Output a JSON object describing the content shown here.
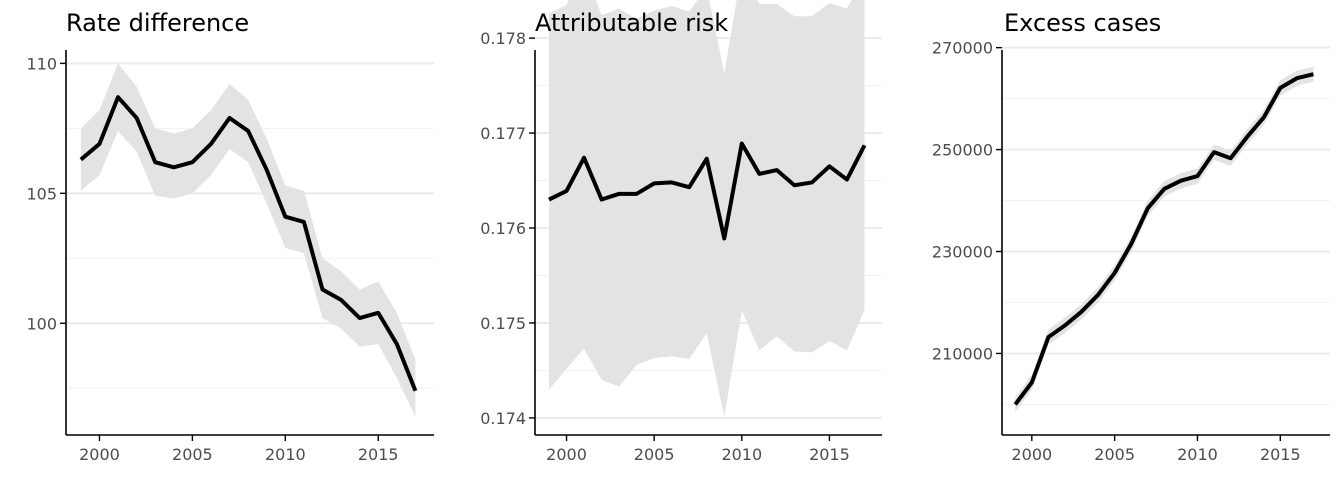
{
  "colors": {
    "line": "#000000",
    "ribbon": "#e3e3e3",
    "grid": "#ebebeb",
    "axis": "#000000",
    "tick_text": "#4d4d4d"
  },
  "chart_data": [
    {
      "type": "line",
      "title": "Rate difference",
      "xlabel": "",
      "ylabel": "",
      "xlim": [
        1998.2,
        2018
      ],
      "ylim": [
        95.7,
        110.9
      ],
      "grid": true,
      "x_ticks": [
        2000,
        2005,
        2010,
        2015
      ],
      "x_tick_labels": [
        "2000",
        "2005",
        "2010",
        "2015"
      ],
      "y_ticks": [
        100,
        105,
        110
      ],
      "y_tick_labels": [
        "100",
        "105",
        "110"
      ],
      "x": [
        1999,
        2000,
        2001,
        2002,
        2003,
        2004,
        2005,
        2006,
        2007,
        2008,
        2009,
        2010,
        2011,
        2012,
        2013,
        2014,
        2015,
        2016,
        2017
      ],
      "series": [
        {
          "values": [
            106.3,
            106.9,
            108.7,
            107.9,
            106.2,
            106.0,
            106.2,
            106.9,
            107.9,
            107.4,
            105.9,
            104.1,
            103.9,
            101.3,
            100.9,
            100.2,
            100.4,
            99.2,
            97.4
          ],
          "lower": [
            105.1,
            105.7,
            107.4,
            106.6,
            104.9,
            104.8,
            105.0,
            105.7,
            106.7,
            106.2,
            104.6,
            102.9,
            102.7,
            100.2,
            99.8,
            99.1,
            99.2,
            97.9,
            96.4
          ],
          "upper": [
            107.5,
            108.2,
            110.0,
            109.1,
            107.5,
            107.3,
            107.5,
            108.2,
            109.2,
            108.6,
            107.1,
            105.3,
            105.1,
            102.5,
            102.0,
            101.3,
            101.6,
            100.4,
            98.6
          ]
        }
      ]
    },
    {
      "type": "line",
      "title": "Attributable risk",
      "xlabel": "",
      "ylabel": "",
      "xlim": [
        1998.2,
        2018
      ],
      "ylim": [
        0.17382,
        0.17798
      ],
      "grid": true,
      "x_ticks": [
        2000,
        2005,
        2010,
        2015
      ],
      "x_tick_labels": [
        "2000",
        "2005",
        "2010",
        "2015"
      ],
      "y_ticks": [
        0.174,
        0.175,
        0.176,
        0.177,
        0.178
      ],
      "y_tick_labels": [
        "0.174",
        "0.175",
        "0.176",
        "0.177",
        "0.178"
      ],
      "x": [
        1999,
        2000,
        2001,
        2002,
        2003,
        2004,
        2005,
        2006,
        2007,
        2008,
        2009,
        2010,
        2011,
        2012,
        2013,
        2014,
        2015,
        2016,
        2017
      ],
      "series": [
        {
          "values": [
            0.1763,
            0.17639,
            0.17674,
            0.1763,
            0.17636,
            0.17636,
            0.17647,
            0.17648,
            0.17643,
            0.17673,
            0.17589,
            0.17689,
            0.17657,
            0.17661,
            0.17645,
            0.17648,
            0.17665,
            0.17651,
            0.17687
          ],
          "lower": [
            0.1743,
            0.17452,
            0.17473,
            0.1744,
            0.17433,
            0.17456,
            0.17463,
            0.17465,
            0.17462,
            0.17489,
            0.17401,
            0.17513,
            0.17471,
            0.17486,
            0.1747,
            0.17469,
            0.17481,
            0.17471,
            0.17514
          ],
          "upper": [
            0.17826,
            0.17835,
            0.17874,
            0.17824,
            0.17831,
            0.1782,
            0.17829,
            0.17834,
            0.17828,
            0.17853,
            0.17763,
            0.17872,
            0.17836,
            0.17836,
            0.17823,
            0.17823,
            0.17837,
            0.17831,
            0.17864
          ]
        }
      ]
    },
    {
      "type": "line",
      "title": "Excess cases",
      "xlabel": "",
      "ylabel": "",
      "xlim": [
        1998.2,
        2018
      ],
      "ylim": [
        194000,
        271500
      ],
      "grid": true,
      "x_ticks": [
        2000,
        2005,
        2010,
        2015
      ],
      "x_tick_labels": [
        "2000",
        "2005",
        "2010",
        "2015"
      ],
      "y_ticks": [
        210000,
        230000,
        250000,
        270000
      ],
      "y_tick_labels": [
        "210000",
        "230000",
        "250000",
        "270000"
      ],
      "x": [
        1999,
        2000,
        2001,
        2002,
        2003,
        2004,
        2005,
        2006,
        2007,
        2008,
        2009,
        2010,
        2011,
        2012,
        2013,
        2014,
        2015,
        2016,
        2017
      ],
      "series": [
        {
          "values": [
            200000,
            204300,
            213200,
            215500,
            218200,
            221500,
            225800,
            231500,
            238500,
            242300,
            243900,
            244800,
            249500,
            248300,
            252500,
            256300,
            262100,
            264000,
            264800
          ],
          "lower": [
            198500,
            202800,
            211700,
            214000,
            216700,
            220000,
            224300,
            230000,
            237000,
            240800,
            242400,
            243300,
            248000,
            246800,
            251000,
            254800,
            260600,
            262500,
            263300
          ],
          "upper": [
            201500,
            205800,
            214700,
            217000,
            219700,
            223000,
            227300,
            233000,
            240000,
            243800,
            245400,
            246300,
            251000,
            249800,
            254000,
            257800,
            263600,
            265500,
            266300
          ]
        }
      ]
    }
  ]
}
